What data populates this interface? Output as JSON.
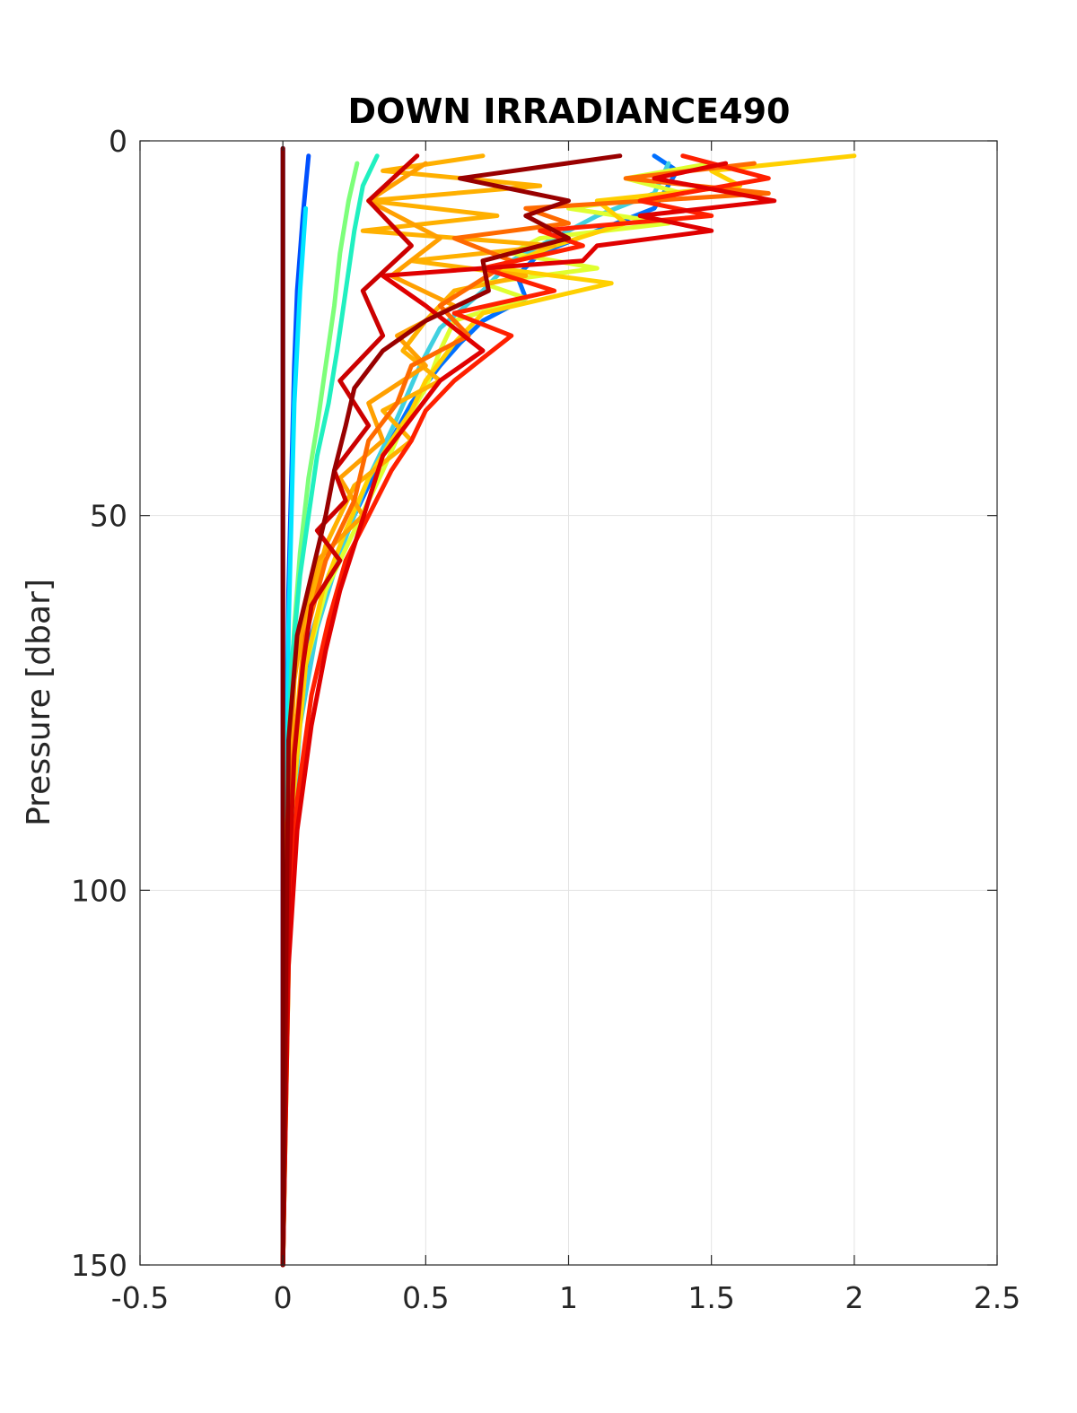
{
  "chart_data": {
    "type": "line",
    "title": "DOWN IRRADIANCE490",
    "xlabel": "",
    "ylabel": "Pressure [dbar]",
    "xlim": [
      -0.5,
      2.5
    ],
    "ylim": [
      0,
      150
    ],
    "y_reversed": true,
    "x_ticks": [
      "-0.5",
      "0",
      "0.5",
      "1",
      "1.5",
      "2",
      "2.5"
    ],
    "y_ticks": [
      "0",
      "50",
      "100",
      "150"
    ],
    "grid": true,
    "legend": "none",
    "series": [
      {
        "color": "#0000cc",
        "x": [
          0,
          0,
          0,
          0
        ],
        "y": [
          1,
          20,
          80,
          150
        ]
      },
      {
        "color": "#0050ff",
        "x": [
          0.09,
          0.08,
          0.07,
          0.05,
          0.04,
          0.03,
          0.02,
          0.01,
          0
        ],
        "y": [
          2,
          6,
          10,
          20,
          30,
          45,
          60,
          90,
          150
        ]
      },
      {
        "color": "#00e5ff",
        "x": [
          0.08,
          0.06,
          0.04,
          0.03,
          0.02,
          0.015,
          0.01,
          0
        ],
        "y": [
          9,
          20,
          35,
          50,
          65,
          80,
          100,
          150
        ]
      },
      {
        "color": "#7dff7a",
        "x": [
          0.26,
          0.23,
          0.2,
          0.18,
          0.15,
          0.12,
          0.09,
          0.06,
          0.04,
          0.02,
          0.01,
          0
        ],
        "y": [
          3,
          8,
          15,
          22,
          30,
          38,
          45,
          55,
          65,
          80,
          100,
          150
        ]
      },
      {
        "color": "#20f0c0",
        "x": [
          0.33,
          0.28,
          0.25,
          0.22,
          0.19,
          0.16,
          0.12,
          0.09,
          0.06,
          0.03,
          0.01,
          0
        ],
        "y": [
          2,
          6,
          12,
          20,
          28,
          35,
          42,
          50,
          58,
          70,
          95,
          150
        ]
      },
      {
        "color": "#0070ff",
        "x": [
          1.3,
          1.38,
          1.3,
          1.1,
          0.9,
          0.82,
          0.85,
          0.7,
          0.62,
          0.55,
          0.45,
          0.35,
          0.25,
          0.16,
          0.1,
          0.05,
          0.02,
          0
        ],
        "y": [
          2,
          4,
          9,
          12,
          15,
          18,
          21,
          24,
          27,
          30,
          35,
          42,
          50,
          58,
          66,
          80,
          100,
          150
        ]
      },
      {
        "color": "#40d0e0",
        "x": [
          1.35,
          1.3,
          1.1,
          0.95,
          0.8,
          0.7,
          0.55,
          0.48,
          0.4,
          0.3,
          0.2,
          0.12,
          0.06,
          0.02,
          0
        ],
        "y": [
          3,
          7,
          10,
          13,
          16,
          20,
          25,
          30,
          37,
          45,
          55,
          65,
          78,
          100,
          150
        ]
      },
      {
        "color": "#e0ff30",
        "x": [
          1.5,
          1.2,
          1.4,
          1.0,
          1.35,
          0.9,
          0.8,
          1.1,
          0.7,
          0.85,
          0.6,
          0.55,
          0.5,
          0.42,
          0.35,
          0.25,
          0.15,
          0.08,
          0.03,
          0
        ],
        "y": [
          3,
          5,
          7,
          9,
          11,
          13,
          15,
          17,
          19,
          21,
          24,
          28,
          33,
          38,
          44,
          52,
          60,
          70,
          90,
          150
        ]
      },
      {
        "color": "#ffd000",
        "x": [
          2.0,
          1.5,
          1.6,
          1.1,
          1.2,
          0.95,
          0.75,
          1.15,
          0.7,
          0.6,
          0.5,
          0.45,
          0.38,
          0.3,
          0.22,
          0.14,
          0.08,
          0.03,
          0
        ],
        "y": [
          2,
          4,
          6,
          8,
          11,
          14,
          17,
          19,
          23,
          27,
          32,
          36,
          40,
          45,
          52,
          60,
          70,
          90,
          150
        ]
      },
      {
        "color": "#ffb000",
        "x": [
          0.7,
          0.35,
          0.9,
          0.3,
          0.75,
          0.28,
          0.95,
          0.45,
          0.85,
          0.6,
          0.5,
          0.42,
          0.55,
          0.35,
          0.45,
          0.25,
          0.15,
          0.08,
          0.03,
          0
        ],
        "y": [
          2,
          4,
          6,
          8,
          10,
          12,
          14,
          16,
          18,
          20,
          24,
          28,
          32,
          36,
          40,
          46,
          54,
          64,
          85,
          150
        ]
      },
      {
        "color": "#ffa000",
        "x": [
          0.5,
          0.3,
          0.55,
          0.38,
          0.6,
          0.4,
          0.5,
          0.3,
          0.35,
          0.2,
          0.28,
          0.12,
          0.08,
          0.04,
          0.01,
          0
        ],
        "y": [
          3,
          8,
          13,
          18,
          22,
          26,
          30,
          35,
          40,
          45,
          50,
          56,
          62,
          72,
          95,
          150
        ]
      },
      {
        "color": "#ff6a00",
        "x": [
          1.65,
          1.2,
          1.7,
          0.85,
          1.0,
          0.6,
          0.8,
          0.55,
          0.65,
          0.45,
          0.4,
          0.3,
          0.25,
          0.15,
          0.08,
          0.03,
          0
        ],
        "y": [
          3,
          5,
          7,
          9,
          11,
          13,
          16,
          22,
          26,
          30,
          35,
          40,
          48,
          56,
          66,
          85,
          150
        ]
      },
      {
        "color": "#ff2000",
        "x": [
          1.4,
          1.7,
          1.25,
          1.5,
          0.9,
          1.05,
          0.7,
          0.95,
          0.6,
          0.8,
          0.7,
          0.6,
          0.5,
          0.45,
          0.38,
          0.3,
          0.22,
          0.16,
          0.1,
          0.05,
          0.02,
          0
        ],
        "y": [
          2,
          5,
          8,
          10,
          12,
          14,
          17,
          20,
          23,
          26,
          29,
          32,
          36,
          40,
          44,
          50,
          56,
          64,
          74,
          88,
          105,
          150
        ]
      },
      {
        "color": "#e00000",
        "x": [
          1.55,
          1.3,
          1.72,
          1.25,
          1.5,
          1.1,
          1.05,
          0.35,
          0.5,
          0.7,
          0.55,
          0.45,
          0.35,
          0.3,
          0.25,
          0.2,
          0.15,
          0.1,
          0.05,
          0.02,
          0
        ],
        "y": [
          3,
          5,
          8,
          10,
          12,
          14,
          16,
          18,
          22,
          28,
          32,
          37,
          42,
          48,
          54,
          60,
          68,
          78,
          92,
          110,
          150
        ]
      },
      {
        "color": "#cc0000",
        "x": [
          0.47,
          0.3,
          0.45,
          0.28,
          0.35,
          0.2,
          0.3,
          0.18,
          0.22,
          0.12,
          0.2,
          0.1,
          0.07,
          0.04,
          0.02,
          0
        ],
        "y": [
          2,
          8,
          14,
          20,
          26,
          32,
          38,
          44,
          48,
          52,
          56,
          62,
          70,
          82,
          100,
          150
        ]
      },
      {
        "color": "#990000",
        "x": [
          1.18,
          0.62,
          1.0,
          0.85,
          1.0,
          0.7,
          0.72,
          0.5,
          0.35,
          0.25,
          0.22,
          0.18,
          0.15,
          0.1,
          0.05,
          0.02,
          0
        ],
        "y": [
          2,
          5,
          8,
          10,
          13,
          16,
          20,
          24,
          28,
          33,
          38,
          44,
          50,
          58,
          66,
          80,
          150
        ]
      },
      {
        "color": "#800000",
        "x": [
          0,
          0,
          0,
          0
        ],
        "y": [
          1,
          30,
          90,
          150
        ]
      }
    ]
  }
}
